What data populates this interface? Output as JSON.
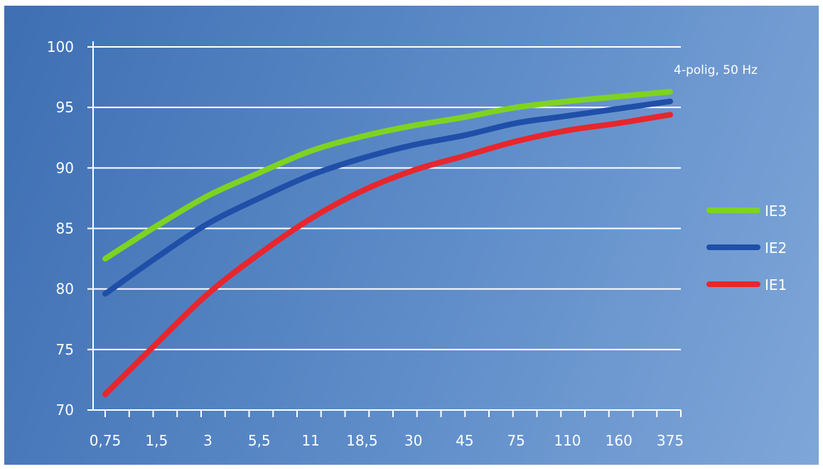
{
  "chart_data": {
    "type": "line",
    "title": "",
    "xlabel": "",
    "ylabel": "",
    "annotation": "4-polig, 50 Hz",
    "x_categories": [
      "0,75",
      "1,5",
      "3",
      "5,5",
      "11",
      "18,5",
      "30",
      "45",
      "75",
      "110",
      "160",
      "375"
    ],
    "yticks": [
      70,
      75,
      80,
      85,
      90,
      95,
      100
    ],
    "ylim": [
      70,
      100
    ],
    "grid": true,
    "legend_position": "right",
    "series": [
      {
        "name": "IE3",
        "color": "#7ed321",
        "values": [
          82.5,
          85.2,
          87.7,
          89.6,
          91.4,
          92.6,
          93.5,
          94.2,
          95.0,
          95.5,
          95.9,
          96.3
        ]
      },
      {
        "name": "IE2",
        "color": "#1f4fa8",
        "values": [
          79.6,
          82.6,
          85.4,
          87.5,
          89.4,
          90.8,
          91.9,
          92.7,
          93.7,
          94.3,
          94.9,
          95.5
        ]
      },
      {
        "name": "IE1",
        "color": "#e8262d",
        "values": [
          71.3,
          75.5,
          79.6,
          82.9,
          85.8,
          88.1,
          89.8,
          91.0,
          92.2,
          93.1,
          93.7,
          94.4
        ]
      }
    ]
  }
}
